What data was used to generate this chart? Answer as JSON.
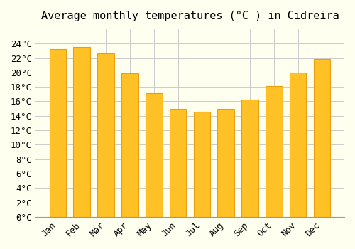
{
  "title": "Average monthly temperatures (°C ) in Cidreira",
  "months": [
    "Jan",
    "Feb",
    "Mar",
    "Apr",
    "May",
    "Jun",
    "Jul",
    "Aug",
    "Sep",
    "Oct",
    "Nov",
    "Dec"
  ],
  "temperatures": [
    23.2,
    23.5,
    22.6,
    19.9,
    17.1,
    15.0,
    14.6,
    15.0,
    16.2,
    18.1,
    20.0,
    21.9
  ],
  "bar_color": "#FFC125",
  "bar_edge_color": "#E8A010",
  "background_color": "#FFFFF0",
  "grid_color": "#CCCCCC",
  "title_fontsize": 11,
  "tick_fontsize": 9,
  "ylim": [
    0,
    26
  ],
  "yticks": [
    0,
    2,
    4,
    6,
    8,
    10,
    12,
    14,
    16,
    18,
    20,
    22,
    24
  ]
}
